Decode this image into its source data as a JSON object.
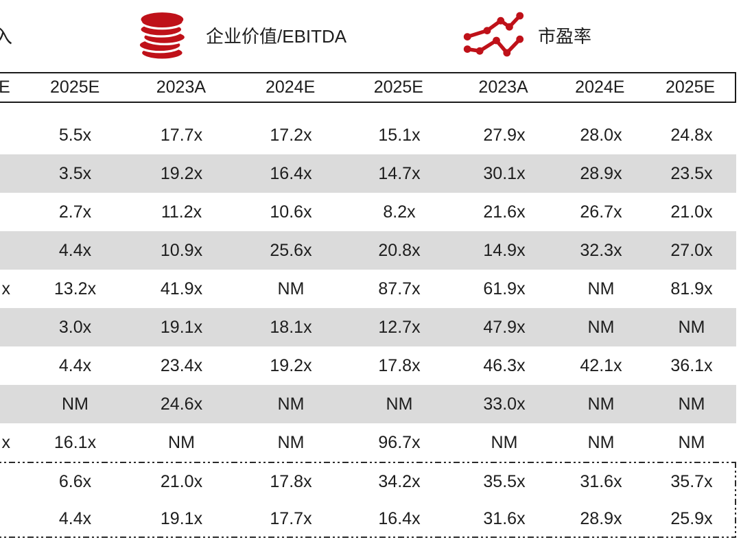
{
  "colors": {
    "accent_red": "#bf1119",
    "zebra_gray": "#dbdbdb",
    "border_black": "#1a1a1a",
    "text": "#1d1d1d"
  },
  "top_legend": {
    "left_label_fragment": "入",
    "items": [
      {
        "icon": "coin-stack-icon",
        "label": "企业价值/EBITDA"
      },
      {
        "icon": "trend-lines-icon",
        "label": "市盈率"
      }
    ]
  },
  "table": {
    "columns": [
      "E",
      "2025E",
      "2023A",
      "2024E",
      "2025E",
      "2023A",
      "2024E",
      "2025E"
    ],
    "rows": [
      [
        "",
        "5.5x",
        "17.7x",
        "17.2x",
        "15.1x",
        "27.9x",
        "28.0x",
        "24.8x"
      ],
      [
        "",
        "3.5x",
        "19.2x",
        "16.4x",
        "14.7x",
        "30.1x",
        "28.9x",
        "23.5x"
      ],
      [
        "",
        "2.7x",
        "11.2x",
        "10.6x",
        "8.2x",
        "21.6x",
        "26.7x",
        "21.0x"
      ],
      [
        "",
        "4.4x",
        "10.9x",
        "25.6x",
        "20.8x",
        "14.9x",
        "32.3x",
        "27.0x"
      ],
      [
        "x",
        "13.2x",
        "41.9x",
        "NM",
        "87.7x",
        "61.9x",
        "NM",
        "81.9x"
      ],
      [
        "",
        "3.0x",
        "19.1x",
        "18.1x",
        "12.7x",
        "47.9x",
        "NM",
        "NM"
      ],
      [
        "",
        "4.4x",
        "23.4x",
        "19.2x",
        "17.8x",
        "46.3x",
        "42.1x",
        "36.1x"
      ],
      [
        "",
        "NM",
        "24.6x",
        "NM",
        "NM",
        "33.0x",
        "NM",
        "NM"
      ],
      [
        "x",
        "16.1x",
        "NM",
        "NM",
        "96.7x",
        "NM",
        "NM",
        "NM"
      ]
    ],
    "summary_rows": [
      [
        "",
        "6.6x",
        "21.0x",
        "17.8x",
        "34.2x",
        "35.5x",
        "31.6x",
        "35.7x"
      ],
      [
        "",
        "4.4x",
        "19.1x",
        "17.7x",
        "16.4x",
        "31.6x",
        "28.9x",
        "25.9x"
      ]
    ]
  }
}
